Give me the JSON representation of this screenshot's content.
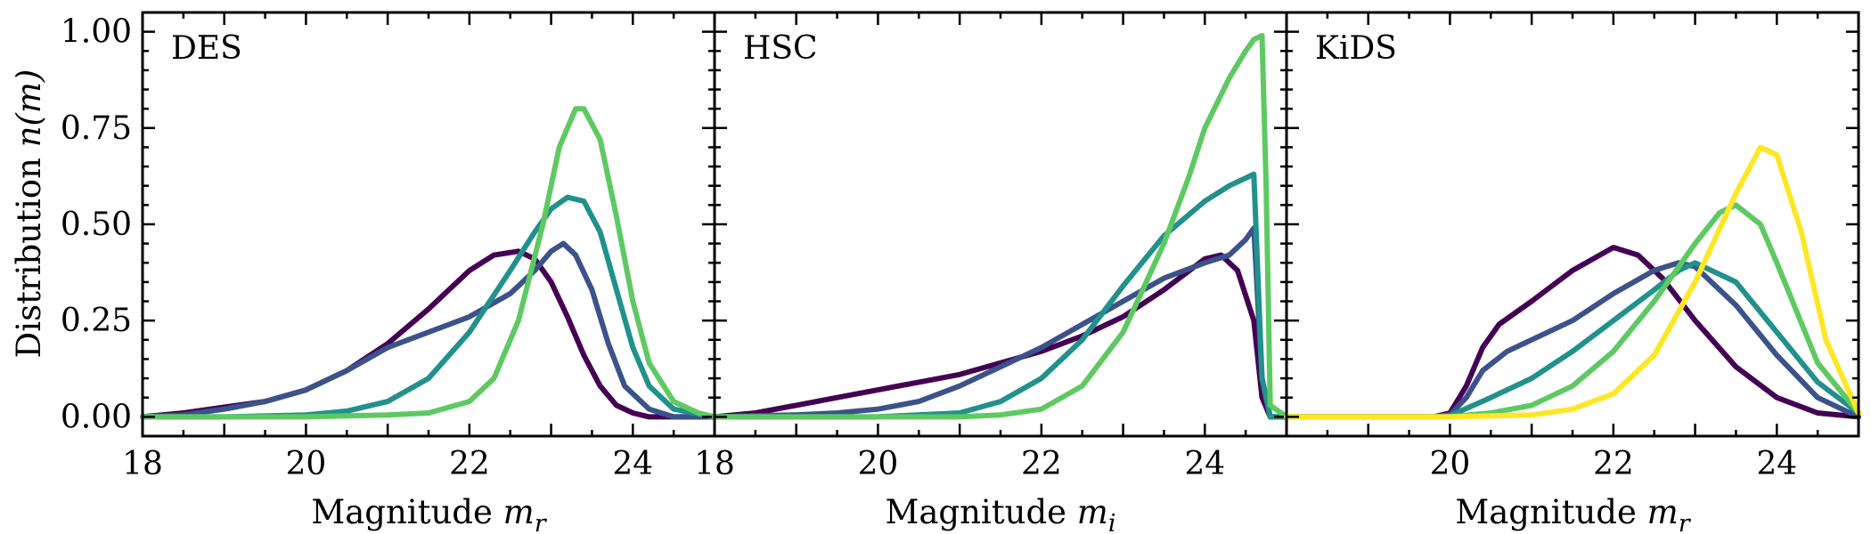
{
  "figure": {
    "ylabel": "Distribution n(m)",
    "ylabel_parts": {
      "text": "Distribution ",
      "math": "n(m)"
    }
  },
  "chart_data": [
    {
      "type": "line",
      "title": "DES",
      "xlabel": "Magnitude m_r",
      "xlabel_parts": {
        "text": "Magnitude ",
        "math": "m",
        "sub": "r"
      },
      "ylabel": "Distribution n(m)",
      "xlim": [
        18,
        25
      ],
      "ylim": [
        -0.05,
        1.05
      ],
      "xticks": [
        18,
        20,
        22,
        24
      ],
      "xtick_labels": [
        "18",
        "20",
        "22",
        "24"
      ],
      "yticks": [
        0,
        0.25,
        0.5,
        0.75,
        1.0
      ],
      "ytick_labels": [
        "0.00",
        "0.25",
        "0.50",
        "0.75",
        "1.00"
      ],
      "grid": false,
      "series": [
        {
          "color": "#440154",
          "x": [
            18.0,
            18.5,
            19.0,
            19.5,
            20.0,
            20.5,
            21.0,
            21.5,
            22.0,
            22.3,
            22.6,
            22.8,
            23.0,
            23.2,
            23.4,
            23.6,
            23.8,
            24.0,
            24.2,
            24.5,
            25.0
          ],
          "y": [
            0.0,
            0.01,
            0.025,
            0.04,
            0.07,
            0.12,
            0.19,
            0.28,
            0.38,
            0.42,
            0.43,
            0.41,
            0.35,
            0.26,
            0.16,
            0.08,
            0.03,
            0.01,
            0.0,
            0.0,
            0.0
          ]
        },
        {
          "color": "#3b528b",
          "x": [
            18.0,
            18.5,
            19.0,
            19.5,
            20.0,
            20.5,
            21.0,
            21.5,
            22.0,
            22.5,
            22.8,
            23.0,
            23.15,
            23.3,
            23.5,
            23.7,
            23.9,
            24.2,
            24.5,
            25.0
          ],
          "y": [
            0.0,
            0.005,
            0.02,
            0.04,
            0.07,
            0.12,
            0.18,
            0.22,
            0.26,
            0.32,
            0.38,
            0.43,
            0.45,
            0.42,
            0.33,
            0.19,
            0.08,
            0.02,
            0.0,
            0.0
          ]
        },
        {
          "color": "#21918c",
          "x": [
            18.0,
            19.0,
            20.0,
            20.5,
            21.0,
            21.5,
            22.0,
            22.5,
            22.8,
            23.0,
            23.2,
            23.4,
            23.6,
            23.8,
            24.0,
            24.2,
            24.5,
            25.0
          ],
          "y": [
            0.0,
            0.0,
            0.005,
            0.015,
            0.04,
            0.1,
            0.22,
            0.38,
            0.48,
            0.54,
            0.57,
            0.56,
            0.48,
            0.33,
            0.18,
            0.08,
            0.02,
            0.0
          ]
        },
        {
          "color": "#5ec962",
          "x": [
            18.0,
            19.0,
            20.0,
            21.0,
            21.5,
            22.0,
            22.3,
            22.6,
            22.9,
            23.1,
            23.3,
            23.4,
            23.6,
            23.8,
            24.0,
            24.2,
            24.5,
            24.8,
            25.0
          ],
          "y": [
            0.0,
            0.0,
            0.0,
            0.005,
            0.01,
            0.04,
            0.1,
            0.25,
            0.5,
            0.7,
            0.8,
            0.8,
            0.72,
            0.52,
            0.3,
            0.14,
            0.04,
            0.01,
            0.0
          ]
        }
      ]
    },
    {
      "type": "line",
      "title": "HSC",
      "xlabel": "Magnitude m_i",
      "xlabel_parts": {
        "text": "Magnitude ",
        "math": "m",
        "sub": "i"
      },
      "xlim": [
        18,
        25
      ],
      "ylim": [
        -0.05,
        1.05
      ],
      "xticks": [
        18,
        20,
        22,
        24
      ],
      "xtick_labels": [
        "18",
        "20",
        "22",
        "24"
      ],
      "yticks": [
        0,
        0.25,
        0.5,
        0.75,
        1.0
      ],
      "grid": false,
      "series": [
        {
          "color": "#440154",
          "x": [
            18.0,
            18.5,
            19.0,
            19.5,
            20.0,
            20.5,
            21.0,
            21.5,
            22.0,
            22.5,
            23.0,
            23.5,
            24.0,
            24.2,
            24.4,
            24.6,
            24.7,
            24.8,
            25.0
          ],
          "y": [
            0.0,
            0.01,
            0.03,
            0.05,
            0.07,
            0.09,
            0.11,
            0.14,
            0.17,
            0.21,
            0.26,
            0.33,
            0.41,
            0.42,
            0.38,
            0.25,
            0.05,
            0.0,
            0.0
          ]
        },
        {
          "color": "#3b528b",
          "x": [
            18.0,
            19.0,
            19.5,
            20.0,
            20.5,
            21.0,
            21.5,
            22.0,
            22.5,
            23.0,
            23.5,
            24.0,
            24.3,
            24.5,
            24.6,
            24.7,
            24.8,
            25.0
          ],
          "y": [
            0.0,
            0.005,
            0.01,
            0.02,
            0.04,
            0.08,
            0.13,
            0.18,
            0.24,
            0.3,
            0.36,
            0.4,
            0.42,
            0.46,
            0.49,
            0.1,
            0.0,
            0.0
          ]
        },
        {
          "color": "#21918c",
          "x": [
            18.0,
            20.0,
            21.0,
            21.5,
            22.0,
            22.5,
            23.0,
            23.5,
            24.0,
            24.3,
            24.5,
            24.6,
            24.7,
            24.8,
            25.0
          ],
          "y": [
            0.0,
            0.0,
            0.01,
            0.04,
            0.1,
            0.2,
            0.34,
            0.47,
            0.56,
            0.6,
            0.62,
            0.63,
            0.1,
            0.0,
            0.0
          ]
        },
        {
          "color": "#5ec962",
          "x": [
            18.0,
            20.0,
            21.0,
            21.5,
            22.0,
            22.5,
            23.0,
            23.5,
            23.8,
            24.0,
            24.3,
            24.5,
            24.6,
            24.7,
            24.75,
            24.8,
            25.0
          ],
          "y": [
            0.0,
            0.0,
            0.0,
            0.005,
            0.02,
            0.08,
            0.22,
            0.45,
            0.62,
            0.75,
            0.88,
            0.95,
            0.98,
            0.99,
            0.6,
            0.03,
            0.0
          ]
        }
      ]
    },
    {
      "type": "line",
      "title": "KiDS",
      "xlabel": "Magnitude m_r",
      "xlabel_parts": {
        "text": "Magnitude ",
        "math": "m",
        "sub": "r"
      },
      "xlim": [
        18,
        25
      ],
      "ylim": [
        -0.05,
        1.05
      ],
      "xticks": [
        18,
        20,
        22,
        24
      ],
      "xtick_labels": [
        "",
        "20",
        "22",
        "24"
      ],
      "yticks": [
        0,
        0.25,
        0.5,
        0.75,
        1.0
      ],
      "grid": false,
      "series": [
        {
          "color": "#440154",
          "x": [
            18.0,
            19.8,
            20.0,
            20.2,
            20.4,
            20.6,
            21.0,
            21.5,
            22.0,
            22.3,
            22.6,
            23.0,
            23.5,
            24.0,
            24.5,
            25.0
          ],
          "y": [
            0.0,
            0.0,
            0.01,
            0.08,
            0.18,
            0.24,
            0.3,
            0.38,
            0.44,
            0.42,
            0.36,
            0.25,
            0.13,
            0.05,
            0.01,
            0.0
          ]
        },
        {
          "color": "#3b528b",
          "x": [
            18.0,
            19.8,
            20.0,
            20.2,
            20.4,
            20.7,
            21.0,
            21.5,
            22.0,
            22.5,
            22.8,
            23.0,
            23.5,
            24.0,
            24.5,
            25.0
          ],
          "y": [
            0.0,
            0.0,
            0.005,
            0.05,
            0.12,
            0.17,
            0.2,
            0.25,
            0.32,
            0.38,
            0.4,
            0.39,
            0.29,
            0.16,
            0.05,
            0.0
          ]
        },
        {
          "color": "#21918c",
          "x": [
            18.0,
            19.8,
            20.0,
            20.5,
            21.0,
            21.5,
            22.0,
            22.5,
            22.8,
            23.0,
            23.5,
            24.0,
            24.5,
            25.0
          ],
          "y": [
            0.0,
            0.0,
            0.003,
            0.05,
            0.1,
            0.17,
            0.25,
            0.33,
            0.38,
            0.4,
            0.35,
            0.22,
            0.09,
            0.01
          ]
        },
        {
          "color": "#5ec962",
          "x": [
            18.0,
            20.0,
            20.5,
            21.0,
            21.5,
            22.0,
            22.5,
            23.0,
            23.3,
            23.5,
            23.8,
            24.0,
            24.5,
            25.0
          ],
          "y": [
            0.0,
            0.0,
            0.01,
            0.03,
            0.08,
            0.17,
            0.3,
            0.45,
            0.53,
            0.55,
            0.5,
            0.4,
            0.14,
            0.01
          ]
        },
        {
          "color": "#fde725",
          "x": [
            18.0,
            20.0,
            21.0,
            21.5,
            22.0,
            22.5,
            23.0,
            23.5,
            23.8,
            24.0,
            24.3,
            24.6,
            25.0
          ],
          "y": [
            0.0,
            0.0,
            0.005,
            0.02,
            0.06,
            0.16,
            0.35,
            0.58,
            0.7,
            0.68,
            0.48,
            0.2,
            0.01
          ]
        }
      ]
    }
  ]
}
